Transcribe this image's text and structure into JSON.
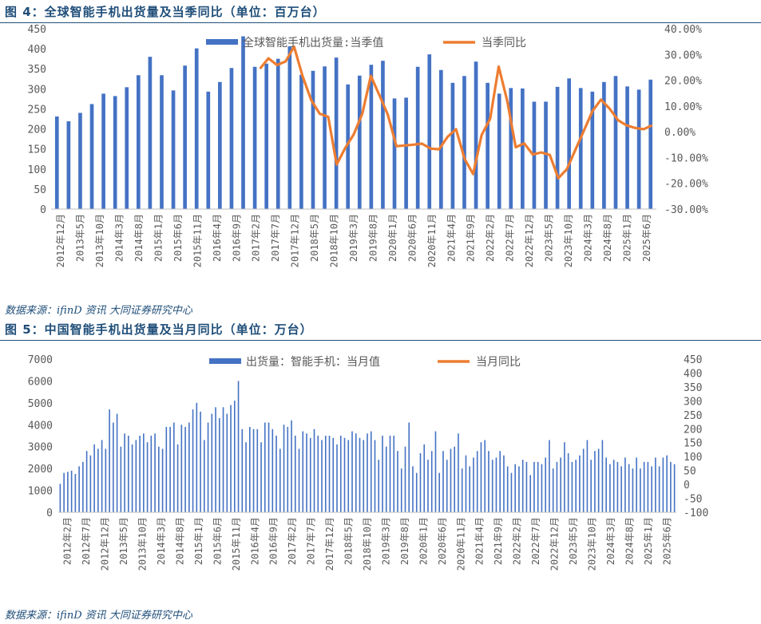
{
  "figures": [
    {
      "title": "图 4：全球智能手机出货量及当季同比（单位：百万台）",
      "source": "数据来源：ifinD 资讯 大同证券研究中心",
      "chart_data": {
        "type": "bar+line",
        "bar_name": "全球智能手机出货量:当季值",
        "line_name": "当季同比",
        "bar_color": "#4472c4",
        "line_color": "#ed7d31",
        "y_left": {
          "min": 0,
          "max": 450,
          "ticks": [
            0,
            50,
            100,
            150,
            200,
            250,
            300,
            350,
            400,
            450
          ]
        },
        "y_right": {
          "min": -30,
          "max": 40,
          "ticks": [
            -30,
            -20,
            -10,
            0,
            10,
            20,
            30,
            40
          ],
          "tick_labels": [
            "-30.00%",
            "-20.00%",
            "-10.00%",
            "0.00%",
            "10.00%",
            "20.00%",
            "30.00%",
            "40.00%"
          ]
        },
        "x_tick_labels": [
          "2012年12月",
          "2013年5月",
          "2013年10月",
          "2014年3月",
          "2014年8月",
          "2015年1月",
          "2015年6月",
          "2015年11月",
          "2016年4月",
          "2016年9月",
          "2017年2月",
          "2017年7月",
          "2017年12月",
          "2018年5月",
          "2018年10月",
          "2019年3月",
          "2019年8月",
          "2020年1月",
          "2020年6月",
          "2020年11月",
          "2021年4月",
          "2021年9月",
          "2022年2月",
          "2022年7月",
          "2022年12月",
          "2023年5月",
          "2023年10月",
          "2024年3月",
          "2024年8月",
          "2025年1月",
          "2025年6月"
        ],
        "bars": [
          231,
          219,
          240,
          262,
          288,
          282,
          304,
          334,
          380,
          334,
          296,
          358,
          401,
          293,
          317,
          352,
          431,
          355,
          363,
          375,
          406,
          335,
          345,
          356,
          378,
          311,
          333,
          360,
          370,
          276,
          278,
          355,
          386,
          347,
          315,
          332,
          368,
          315,
          288,
          302,
          301,
          268,
          268,
          305,
          326,
          302,
          293,
          317,
          332,
          306,
          298,
          323
        ],
        "yoy": [
          null,
          null,
          null,
          null,
          null,
          null,
          null,
          null,
          null,
          null,
          null,
          null,
          null,
          null,
          null,
          null,
          null,
          null,
          null,
          null,
          null,
          null,
          null,
          null,
          24.5,
          28.5,
          25.9,
          27.3,
          33.0,
          21.6,
          12.4,
          7.0,
          5.8,
          -12.7,
          -6.3,
          -1.0,
          7.0,
          21.7,
          14.3,
          6.6,
          -5.6,
          -5.3,
          -5.0,
          -4.6,
          -6.5,
          -6.8,
          -2.0,
          1.0,
          -10.5,
          -16.4,
          -1.3,
          5.0,
          25.3,
          12.0,
          -6.0,
          -4.5,
          -8.8,
          -8.0,
          -9.0,
          -18.0,
          -14.5,
          -7.0,
          0.5,
          8.0,
          12.5,
          9.0,
          4.5,
          2.5,
          1.5,
          1.0,
          2.5
        ]
      }
    },
    {
      "title": "图 5：中国智能手机出货量及当月同比（单位：万台）",
      "source": "数据来源：ifinD 资讯 大同证券研究中心",
      "chart_data": {
        "type": "bar+line",
        "bar_name": "出货量：智能手机：当月值",
        "line_name": "当月同比",
        "bar_color": "#4472c4",
        "line_color": "#ed7d31",
        "y_left": {
          "min": 0,
          "max": 7000,
          "ticks": [
            0,
            1000,
            2000,
            3000,
            4000,
            5000,
            6000,
            7000
          ]
        },
        "y_right": {
          "min": -100,
          "max": 450,
          "ticks": [
            -100,
            -50,
            0,
            50,
            100,
            150,
            200,
            250,
            300,
            350,
            400,
            450
          ]
        },
        "x_tick_labels": [
          "2012年2月",
          "2012年7月",
          "2012年12月",
          "2013年5月",
          "2013年10月",
          "2014年3月",
          "2014年8月",
          "2015年1月",
          "2015年6月",
          "2015年11月",
          "2016年4月",
          "2016年9月",
          "2017年2月",
          "2017年7月",
          "2017年12月",
          "2018年5月",
          "2018年10月",
          "2019年3月",
          "2019年8月",
          "2020年1月",
          "2020年6月",
          "2020年11月",
          "2021年4月",
          "2021年9月",
          "2022年2月",
          "2022年7月",
          "2022年12月",
          "2023年5月",
          "2023年10月",
          "2024年3月",
          "2024年8月",
          "2025年1月",
          "2025年6月"
        ],
        "bars": [
          1300,
          1800,
          1850,
          1900,
          1750,
          2100,
          2300,
          2800,
          2600,
          3100,
          2900,
          3300,
          2900,
          4700,
          4100,
          4500,
          3000,
          3600,
          3500,
          3100,
          3300,
          3500,
          3600,
          3200,
          3500,
          3600,
          3000,
          2900,
          3900,
          3900,
          4100,
          3100,
          4000,
          3900,
          4100,
          4700,
          5000,
          4600,
          3300,
          4100,
          4500,
          4800,
          4300,
          4800,
          4500,
          4900,
          5100,
          6000,
          3800,
          3200,
          3900,
          3800,
          3800,
          3200,
          4100,
          4100,
          3800,
          3500,
          2900,
          4000,
          3900,
          4200,
          3500,
          2900,
          3700,
          3600,
          3400,
          3800,
          3500,
          3300,
          3500,
          3500,
          3400,
          3100,
          3500,
          3400,
          3300,
          3700,
          3600,
          3400,
          3300,
          3600,
          3700,
          3300,
          2400,
          3500,
          3000,
          3500,
          3500,
          2800,
          2000,
          3000,
          4100,
          2100,
          1800,
          2700,
          3100,
          2400,
          2800,
          3700,
          1800,
          2800,
          2400,
          2900,
          3000,
          3600,
          2000,
          2600,
          2100,
          2500,
          2800,
          3200,
          3300,
          2800,
          2400,
          2500,
          2800,
          2600,
          2100,
          1800,
          2200,
          2100,
          2400,
          2300,
          1700,
          2300,
          2300,
          2200,
          2500,
          3300,
          2000,
          2300,
          2500,
          3200,
          2700,
          2300,
          2400,
          2600,
          2900,
          3300,
          2400,
          2800,
          2900,
          3300,
          2500,
          2200,
          2400,
          2300,
          2100,
          2500,
          2200,
          2000,
          2500,
          2000,
          2300,
          2300,
          2100,
          2500,
          2100,
          2500,
          2600,
          2300,
          2200
        ]
      }
    }
  ]
}
